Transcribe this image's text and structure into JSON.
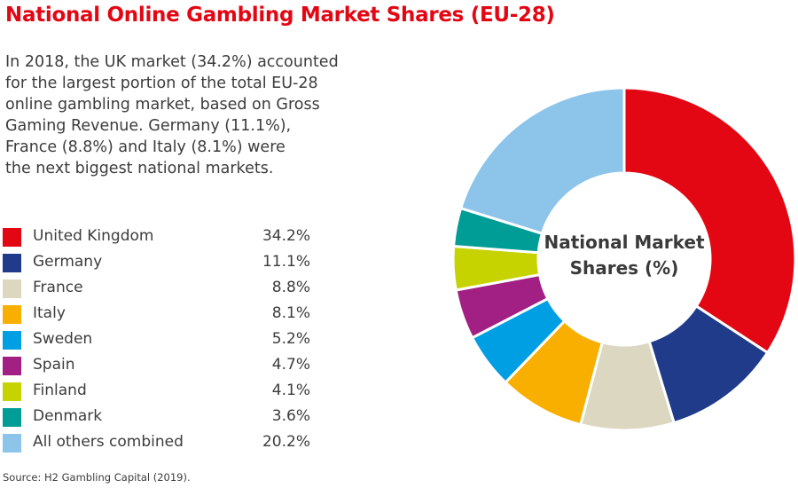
{
  "chart_data": {
    "type": "pie",
    "variant": "donut",
    "title": "National Online Gambling Market Shares (EU-28)",
    "description_lines": [
      "In 2018, the UK market (34.2%) accounted",
      "for the largest portion of the total EU-28",
      "online gambling market, based on Gross",
      "Gaming Revenue. Germany (11.1%),",
      "France (8.8%) and Italy (8.1%) were",
      "the next biggest national markets."
    ],
    "center_label_lines": [
      "National Market",
      "Shares (%)"
    ],
    "legend_placement": "left",
    "slices": [
      {
        "label": "United Kingdom",
        "value": 34.2,
        "display": "34.2%",
        "color": "#e30613"
      },
      {
        "label": "Germany",
        "value": 11.1,
        "display": "11.1%",
        "color": "#1f3b8a"
      },
      {
        "label": "France",
        "value": 8.8,
        "display": "8.8%",
        "color": "#dcd7c1"
      },
      {
        "label": "Italy",
        "value": 8.1,
        "display": "8.1%",
        "color": "#f8af00"
      },
      {
        "label": "Sweden",
        "value": 5.2,
        "display": "5.2%",
        "color": "#009fe3"
      },
      {
        "label": "Spain",
        "value": 4.7,
        "display": "4.7%",
        "color": "#a21f83"
      },
      {
        "label": "Finland",
        "value": 4.1,
        "display": "4.1%",
        "color": "#c7d300"
      },
      {
        "label": "Denmark",
        "value": 3.6,
        "display": "3.6%",
        "color": "#009c96"
      },
      {
        "label": "All others combined",
        "value": 20.2,
        "display": "20.2%",
        "color": "#8cc4ea"
      }
    ],
    "source": "Source: H2 Gambling Capital (2019)."
  }
}
